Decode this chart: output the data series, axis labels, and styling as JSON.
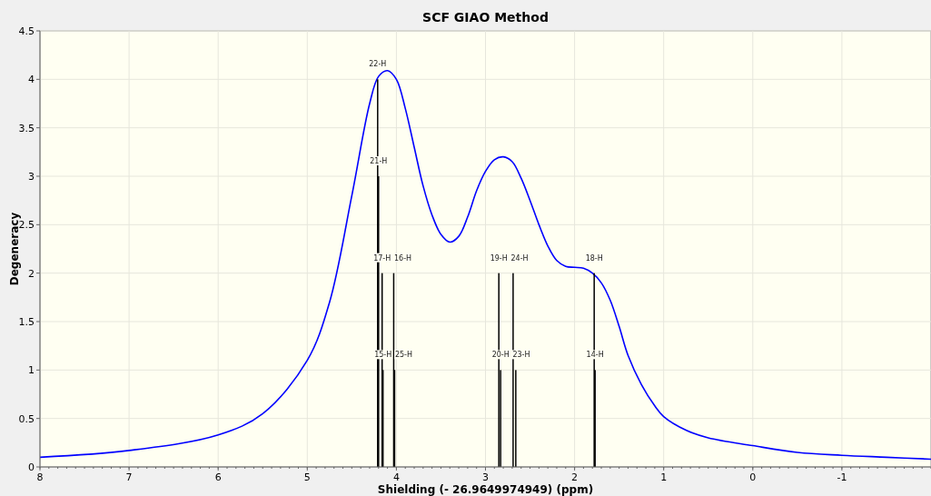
{
  "chart_data": {
    "type": "line",
    "title": "SCF GIAO Method",
    "xlabel": "Shielding (- 26.9649974949) (ppm)",
    "ylabel": "Degeneracy",
    "xlim": [
      8,
      -2
    ],
    "xticks": [
      8,
      7,
      6,
      5,
      4,
      3,
      2,
      1,
      0,
      -1
    ],
    "ylim": [
      0,
      4.5
    ],
    "yticks": [
      0,
      0.5,
      1,
      1.5,
      2,
      2.5,
      3,
      3.5,
      4,
      4.5
    ],
    "grid": true,
    "series": [
      {
        "color": "#0000ff",
        "x": [
          8,
          7,
          6,
          5.5,
          5,
          4.75,
          4.5,
          4.3,
          4.2,
          4.1,
          4,
          3.9,
          3.8,
          3.7,
          3.6,
          3.5,
          3.4,
          3.3,
          3.2,
          3.1,
          3,
          2.9,
          2.8,
          2.7,
          2.6,
          2.5,
          2.4,
          2.3,
          2.2,
          2.1,
          2,
          1.9,
          1.8,
          1.7,
          1.6,
          1.5,
          1.4,
          1.25,
          1.1,
          1,
          0.75,
          0.5,
          0,
          -0.5,
          -1,
          -1.5,
          -2
        ],
        "values": [
          0.1,
          0.17,
          0.33,
          0.55,
          1.1,
          1.7,
          2.8,
          3.75,
          4.03,
          4.09,
          4,
          3.7,
          3.3,
          2.9,
          2.6,
          2.4,
          2.32,
          2.38,
          2.58,
          2.85,
          3.05,
          3.17,
          3.2,
          3.15,
          2.98,
          2.75,
          2.5,
          2.28,
          2.13,
          2.07,
          2.06,
          2.05,
          2,
          1.9,
          1.72,
          1.45,
          1.15,
          0.85,
          0.63,
          0.52,
          0.38,
          0.3,
          0.22,
          0.15,
          0.12,
          0.1,
          0.08
        ]
      },
      {
        "type": "bar",
        "color": "#000000",
        "x": [
          4.21,
          4.2,
          4.16,
          4.15,
          4.03,
          4.02,
          2.85,
          2.83,
          2.69,
          2.66,
          1.78,
          1.77
        ],
        "values": [
          4,
          3,
          2,
          1,
          2,
          1,
          2,
          1,
          2,
          1,
          2,
          1
        ]
      }
    ],
    "annotations": [
      {
        "text": "22-H",
        "x": 4.21,
        "y": 4
      },
      {
        "text": "21-H",
        "x": 4.2,
        "y": 3
      },
      {
        "text": "17-H",
        "x": 4.16,
        "y": 2
      },
      {
        "text": "16-H",
        "x": 4.03,
        "y": 2
      },
      {
        "text": "15-H",
        "x": 4.15,
        "y": 1
      },
      {
        "text": "25-H",
        "x": 4.02,
        "y": 1
      },
      {
        "text": "19-H",
        "x": 2.85,
        "y": 2
      },
      {
        "text": "20-H",
        "x": 2.83,
        "y": 1
      },
      {
        "text": "24-H",
        "x": 2.69,
        "y": 2
      },
      {
        "text": "23-H",
        "x": 2.66,
        "y": 1
      },
      {
        "text": "18-H",
        "x": 1.78,
        "y": 2
      },
      {
        "text": "14-H",
        "x": 1.77,
        "y": 1
      }
    ]
  }
}
